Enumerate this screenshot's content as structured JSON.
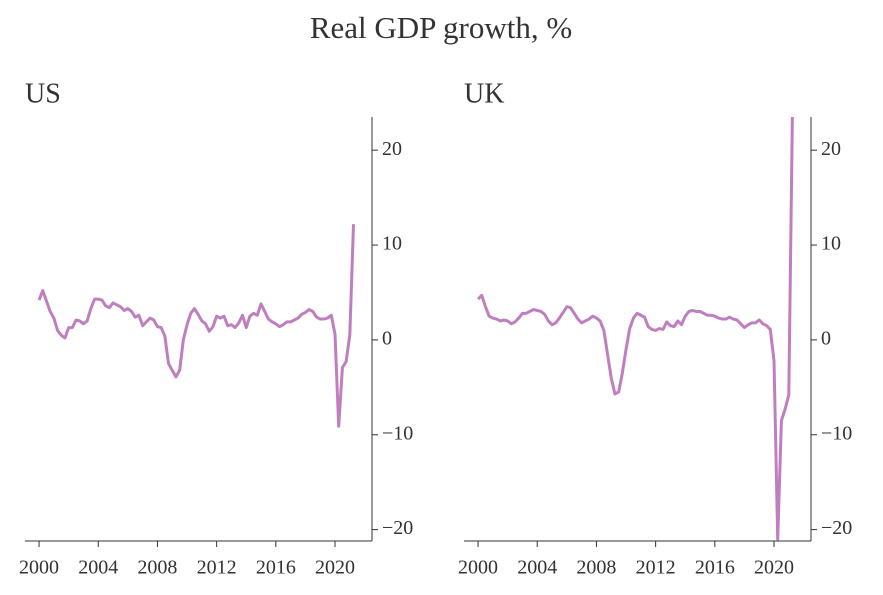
{
  "title": "Real GDP growth, %",
  "chart_data": [
    {
      "type": "line",
      "title": "US",
      "x": [
        2000,
        2000.25,
        2000.5,
        2000.75,
        2001,
        2001.25,
        2001.5,
        2001.75,
        2002,
        2002.25,
        2002.5,
        2002.75,
        2003,
        2003.25,
        2003.5,
        2003.75,
        2004,
        2004.25,
        2004.5,
        2004.75,
        2005,
        2005.25,
        2005.5,
        2005.75,
        2006,
        2006.25,
        2006.5,
        2006.75,
        2007,
        2007.25,
        2007.5,
        2007.75,
        2008,
        2008.25,
        2008.5,
        2008.75,
        2009,
        2009.25,
        2009.5,
        2009.75,
        2010,
        2010.25,
        2010.5,
        2010.75,
        2011,
        2011.25,
        2011.5,
        2011.75,
        2012,
        2012.25,
        2012.5,
        2012.75,
        2013,
        2013.25,
        2013.5,
        2013.75,
        2014,
        2014.25,
        2014.5,
        2014.75,
        2015,
        2015.25,
        2015.5,
        2015.75,
        2016,
        2016.25,
        2016.5,
        2016.75,
        2017,
        2017.25,
        2017.5,
        2017.75,
        2018,
        2018.25,
        2018.5,
        2018.75,
        2019,
        2019.25,
        2019.5,
        2019.75,
        2020,
        2020.25,
        2020.5,
        2020.75,
        2021,
        2021.25
      ],
      "series": [
        {
          "name": "US",
          "color": "#bf7fbf",
          "values": [
            4.2,
            5.2,
            4.1,
            3.0,
            2.3,
            1.0,
            0.5,
            0.2,
            1.3,
            1.3,
            2.1,
            2.0,
            1.7,
            2.0,
            3.3,
            4.3,
            4.3,
            4.2,
            3.6,
            3.4,
            3.9,
            3.7,
            3.5,
            3.1,
            3.3,
            3.0,
            2.4,
            2.6,
            1.5,
            1.9,
            2.3,
            2.1,
            1.4,
            1.3,
            0.4,
            -2.5,
            -3.2,
            -3.9,
            -3.2,
            0.0,
            1.6,
            2.8,
            3.3,
            2.7,
            2.0,
            1.7,
            0.9,
            1.4,
            2.5,
            2.3,
            2.5,
            1.5,
            1.6,
            1.3,
            1.8,
            2.6,
            1.3,
            2.5,
            2.8,
            2.6,
            3.8,
            3.0,
            2.2,
            1.9,
            1.7,
            1.4,
            1.6,
            1.9,
            1.9,
            2.1,
            2.3,
            2.7,
            2.9,
            3.2,
            3.0,
            2.4,
            2.2,
            2.2,
            2.3,
            2.6,
            0.6,
            -9.1,
            -2.9,
            -2.3,
            0.5,
            12.2
          ]
        }
      ],
      "xlim": [
        1999.05,
        2022.5
      ],
      "ylim": [
        -21.2,
        23.5
      ],
      "xticks": [
        2000,
        2004,
        2008,
        2012,
        2016,
        2020
      ],
      "yticks": [
        {
          "value": -20,
          "label": "−20"
        },
        {
          "value": -10,
          "label": "−10"
        },
        0,
        10,
        20
      ]
    },
    {
      "type": "line",
      "title": "UK",
      "x": [
        2000,
        2000.25,
        2000.5,
        2000.75,
        2001,
        2001.25,
        2001.5,
        2001.75,
        2002,
        2002.25,
        2002.5,
        2002.75,
        2003,
        2003.25,
        2003.5,
        2003.75,
        2004,
        2004.25,
        2004.5,
        2004.75,
        2005,
        2005.25,
        2005.5,
        2005.75,
        2006,
        2006.25,
        2006.5,
        2006.75,
        2007,
        2007.25,
        2007.5,
        2007.75,
        2008,
        2008.25,
        2008.5,
        2008.75,
        2009,
        2009.25,
        2009.5,
        2009.75,
        2010,
        2010.25,
        2010.5,
        2010.75,
        2011,
        2011.25,
        2011.5,
        2011.75,
        2012,
        2012.25,
        2012.5,
        2012.75,
        2013,
        2013.25,
        2013.5,
        2013.75,
        2014,
        2014.25,
        2014.5,
        2014.75,
        2015,
        2015.25,
        2015.5,
        2015.75,
        2016,
        2016.25,
        2016.5,
        2016.75,
        2017,
        2017.25,
        2017.5,
        2017.75,
        2018,
        2018.25,
        2018.5,
        2018.75,
        2019,
        2019.25,
        2019.5,
        2019.75,
        2020,
        2020.25,
        2020.5,
        2020.75,
        2021,
        2021.25
      ],
      "series": [
        {
          "name": "UK",
          "color": "#bf7fbf",
          "values": [
            4.3,
            4.7,
            3.5,
            2.5,
            2.3,
            2.2,
            2.0,
            2.1,
            2.0,
            1.7,
            1.9,
            2.3,
            2.8,
            2.8,
            3.0,
            3.2,
            3.1,
            3.0,
            2.7,
            2.0,
            1.6,
            1.8,
            2.3,
            2.9,
            3.5,
            3.4,
            2.8,
            2.2,
            1.8,
            2.0,
            2.2,
            2.5,
            2.3,
            2.0,
            1.0,
            -1.5,
            -4.0,
            -5.7,
            -5.5,
            -3.5,
            -1.0,
            1.2,
            2.3,
            2.8,
            2.6,
            2.4,
            1.4,
            1.1,
            1.0,
            1.2,
            1.1,
            1.9,
            1.5,
            1.4,
            2.0,
            1.6,
            2.5,
            3.0,
            3.1,
            3.0,
            3.0,
            2.8,
            2.6,
            2.6,
            2.5,
            2.3,
            2.2,
            2.2,
            2.4,
            2.2,
            2.1,
            1.7,
            1.3,
            1.6,
            1.8,
            1.8,
            2.1,
            1.7,
            1.5,
            1.1,
            -2.2,
            -21.0,
            -8.5,
            -7.3,
            -5.8,
            24.6
          ]
        }
      ],
      "xlim": [
        1999.05,
        2022.5
      ],
      "ylim": [
        -21.2,
        23.5
      ],
      "xticks": [
        2000,
        2004,
        2008,
        2012,
        2016,
        2020
      ],
      "yticks": [
        {
          "value": -20,
          "label": "−20"
        },
        {
          "value": -10,
          "label": "−10"
        },
        0,
        10,
        20
      ]
    }
  ]
}
